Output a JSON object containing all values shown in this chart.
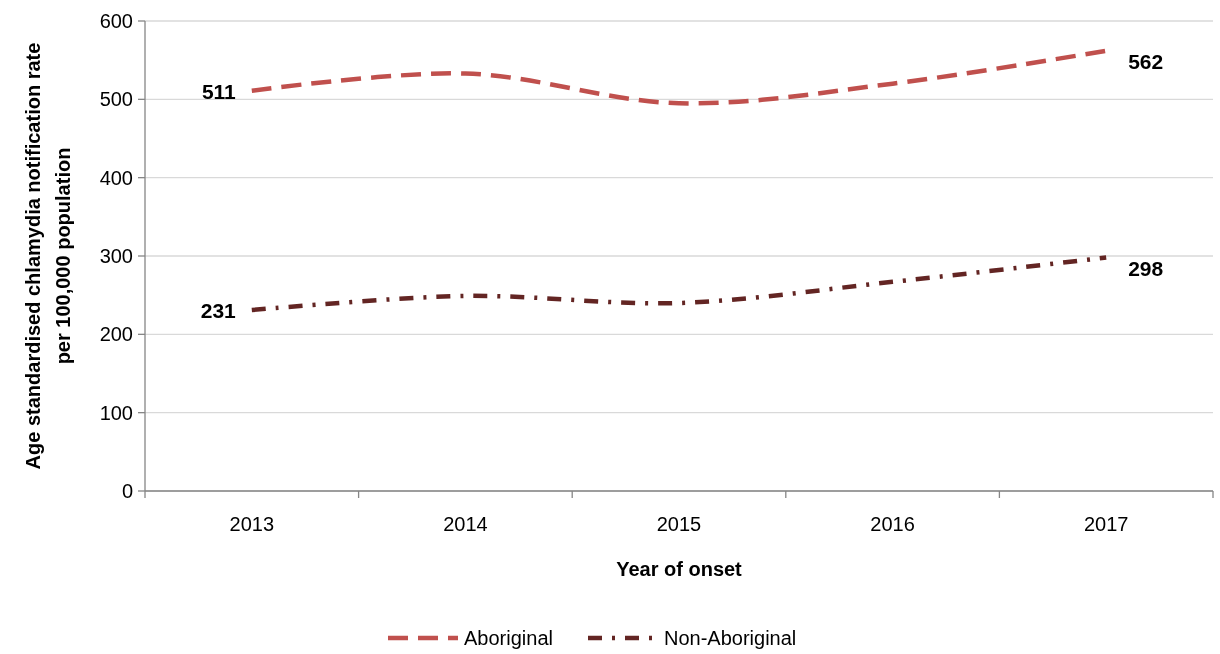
{
  "chart_data": {
    "type": "line",
    "xlabel": "Year of onset",
    "ylabel": "Age standardised chlamydia notification rate per 100,000 population",
    "categories": [
      "2013",
      "2014",
      "2015",
      "2016",
      "2017"
    ],
    "series": [
      {
        "name": "Aboriginal",
        "color": "#c0504d",
        "line_style": "dashed",
        "values": [
          511,
          533,
          495,
          520,
          562
        ],
        "value_labels": [
          "511",
          null,
          null,
          null,
          "562"
        ]
      },
      {
        "name": "Non-Aboriginal",
        "color": "#632523",
        "line_style": "dotted",
        "values": [
          231,
          249,
          240,
          267,
          298
        ],
        "value_labels": [
          "231",
          null,
          null,
          null,
          "298"
        ]
      }
    ],
    "ylim": [
      0,
      600
    ],
    "yticks": [
      0,
      100,
      200,
      300,
      400,
      500,
      600
    ],
    "grid": "y",
    "legend": "bottom",
    "marker": "none"
  }
}
